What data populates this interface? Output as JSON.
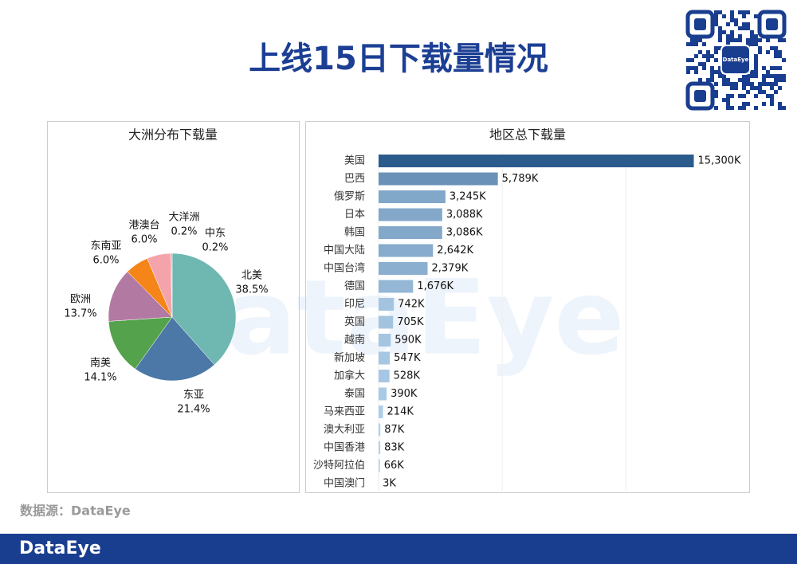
{
  "title": "上线15日下载量情况",
  "source": "数据源：DataEye",
  "footer_logo": "DataEye",
  "qr_label": "DataEye",
  "watermark": "DataEye",
  "chart_data": [
    {
      "type": "pie",
      "title": "大洲分布下载量",
      "categories": [
        "北美",
        "东亚",
        "南美",
        "欧洲",
        "东南亚",
        "港澳台",
        "大洋洲",
        "中东"
      ],
      "values": [
        38.5,
        21.4,
        14.1,
        13.7,
        6.0,
        6.0,
        0.2,
        0.2
      ],
      "value_labels": [
        "38.5%",
        "21.4%",
        "14.1%",
        "13.7%",
        "6.0%",
        "6.0%",
        "0.2%",
        "0.2%"
      ],
      "colors": [
        "#6fb7b1",
        "#4c78a8",
        "#54a24b",
        "#b279a2",
        "#f58518",
        "#f4a3ab",
        "#e45756",
        "#9d7660"
      ]
    },
    {
      "type": "hbar",
      "title": "地区总下载量",
      "categories": [
        "美国",
        "巴西",
        "俄罗斯",
        "日本",
        "韩国",
        "中国大陆",
        "中国台湾",
        "德国",
        "印尼",
        "英国",
        "越南",
        "新加坡",
        "加拿大",
        "泰国",
        "马来西亚",
        "澳大利亚",
        "中国香港",
        "沙特阿拉伯",
        "中国澳门"
      ],
      "values": [
        15300,
        5789,
        3245,
        3088,
        3086,
        2642,
        2379,
        1676,
        742,
        705,
        590,
        547,
        528,
        390,
        214,
        87,
        83,
        66,
        3
      ],
      "value_labels": [
        "15,300K",
        "5,789K",
        "3,245K",
        "3,088K",
        "3,086K",
        "2,642K",
        "2,379K",
        "1,676K",
        "742K",
        "705K",
        "590K",
        "547K",
        "528K",
        "390K",
        "214K",
        "87K",
        "83K",
        "66K",
        "3K"
      ],
      "color_scale": [
        "#b9d8f0",
        "#2b5b8c"
      ],
      "xlim": [
        0,
        17600
      ],
      "xticks": [
        0,
        6000,
        12000
      ],
      "grid": true
    }
  ]
}
